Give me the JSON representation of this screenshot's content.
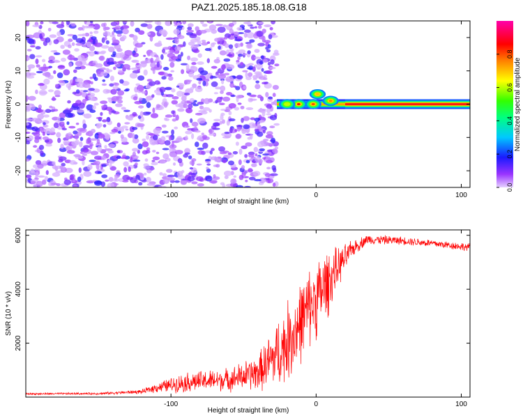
{
  "title": "PAZ1.2025.185.18.08.G18",
  "chart_data": [
    {
      "type": "heatmap",
      "xlabel": "Height of straight line (km)",
      "ylabel": "Frequency (Hz)",
      "xlim": [
        -200,
        106
      ],
      "ylim": [
        -25,
        25
      ],
      "xticks": [
        -100,
        0,
        100
      ],
      "yticks": [
        -20,
        -10,
        0,
        10,
        20
      ],
      "colorbar": {
        "label": "Normalized spectral amplitude",
        "range": [
          0,
          1
        ],
        "ticks": [
          "0.0",
          "0.2",
          "0.4",
          "0.6",
          "0.8"
        ],
        "colormap": "rainbow"
      },
      "noise_region_x": [
        -200,
        -27
      ],
      "signal_track": {
        "freq_hz": 0,
        "x_range": [
          -27,
          106
        ],
        "peaks": [
          {
            "x": 1,
            "freq": 3,
            "amp": 0.7
          },
          {
            "x": -12,
            "freq": 0,
            "amp": 0.85
          },
          {
            "x": -2,
            "freq": 0,
            "amp": 0.8
          },
          {
            "x": 10,
            "freq": 1,
            "amp": 0.75
          },
          {
            "x": -20,
            "freq": 0,
            "amp": 0.6
          }
        ],
        "steady_amp": 0.9
      }
    },
    {
      "type": "line",
      "xlabel": "Height of straight line (km)",
      "ylabel": "SNR (10 * v/v)",
      "xlim": [
        -200,
        106
      ],
      "ylim": [
        0,
        6200
      ],
      "xticks": [
        -100,
        0,
        100
      ],
      "yticks": [
        2000,
        4000,
        6000
      ],
      "line_color": "#ff0000",
      "envelope": [
        {
          "x": -200,
          "mean": 120,
          "spread": 60
        },
        {
          "x": -150,
          "mean": 130,
          "spread": 70
        },
        {
          "x": -120,
          "mean": 200,
          "spread": 120
        },
        {
          "x": -110,
          "mean": 350,
          "spread": 300
        },
        {
          "x": -90,
          "mean": 550,
          "spread": 600
        },
        {
          "x": -60,
          "mean": 650,
          "spread": 700
        },
        {
          "x": -40,
          "mean": 900,
          "spread": 1100
        },
        {
          "x": -25,
          "mean": 1700,
          "spread": 2200
        },
        {
          "x": -15,
          "mean": 2400,
          "spread": 2600
        },
        {
          "x": -5,
          "mean": 3300,
          "spread": 2400
        },
        {
          "x": 5,
          "mean": 4000,
          "spread": 2400
        },
        {
          "x": 15,
          "mean": 4800,
          "spread": 1200
        },
        {
          "x": 25,
          "mean": 5500,
          "spread": 500
        },
        {
          "x": 35,
          "mean": 5850,
          "spread": 300
        },
        {
          "x": 60,
          "mean": 5800,
          "spread": 250
        },
        {
          "x": 80,
          "mean": 5700,
          "spread": 250
        },
        {
          "x": 106,
          "mean": 5550,
          "spread": 250
        }
      ]
    }
  ]
}
